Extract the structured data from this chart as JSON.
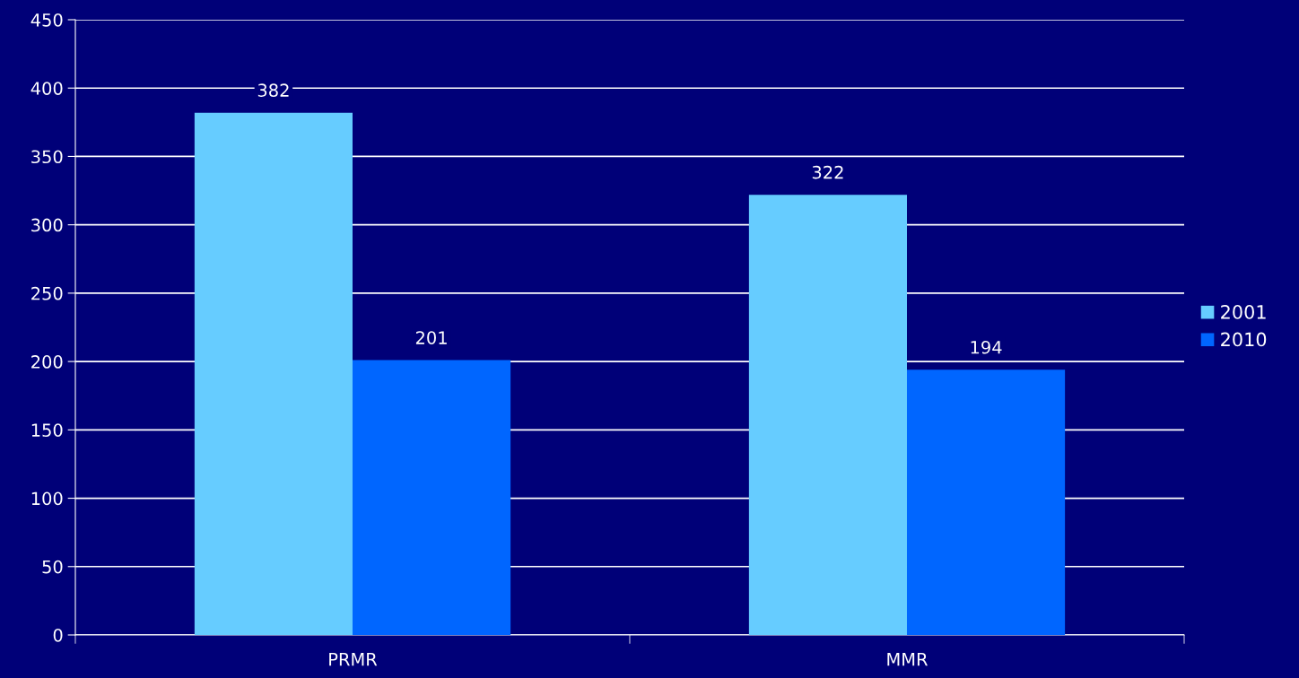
{
  "chart_data": {
    "type": "bar",
    "categories": [
      "PRMR",
      "MMR"
    ],
    "series": [
      {
        "name": "2001",
        "color": "#66ccff",
        "values": [
          382,
          322
        ]
      },
      {
        "name": "2010",
        "color": "#0066ff",
        "values": [
          201,
          194
        ]
      }
    ],
    "ylim": [
      0,
      450
    ],
    "yticks": [
      0,
      50,
      100,
      150,
      200,
      250,
      300,
      350,
      400,
      450
    ],
    "grid": "y",
    "legend": "right",
    "data_labels": true
  }
}
